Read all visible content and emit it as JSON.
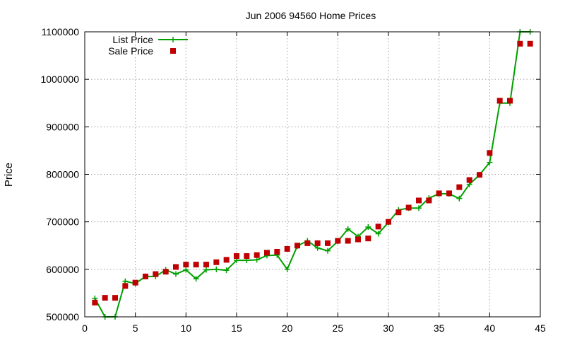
{
  "chart_data": {
    "type": "line",
    "title": "Jun 2006 94560 Home Prices",
    "xlabel": "",
    "ylabel": "Price",
    "xlim": [
      0,
      45
    ],
    "ylim": [
      500000,
      1100000
    ],
    "x_ticks": [
      0,
      5,
      10,
      15,
      20,
      25,
      30,
      35,
      40,
      45
    ],
    "y_ticks": [
      500000,
      600000,
      700000,
      800000,
      900000,
      1000000,
      1100000
    ],
    "grid": true,
    "legend_position": "top-left",
    "series": [
      {
        "name": "List Price",
        "style": "line-with-plus-markers",
        "color": "#00a000",
        "x": [
          1,
          2,
          3,
          4,
          5,
          6,
          7,
          8,
          9,
          10,
          11,
          12,
          13,
          14,
          15,
          16,
          17,
          18,
          19,
          20,
          21,
          22,
          23,
          24,
          25,
          26,
          27,
          28,
          29,
          30,
          31,
          32,
          33,
          34,
          35,
          36,
          37,
          38,
          39,
          40,
          41,
          42,
          43,
          44
        ],
        "values": [
          539000,
          500000,
          500000,
          575000,
          570000,
          585000,
          585000,
          599000,
          590000,
          599000,
          580000,
          599000,
          600000,
          598000,
          619000,
          619000,
          620000,
          629000,
          630000,
          600000,
          649000,
          660000,
          645000,
          639000,
          659000,
          685000,
          669000,
          689000,
          675000,
          699000,
          725000,
          729000,
          729000,
          750000,
          759000,
          759000,
          749000,
          779000,
          799000,
          825000,
          950000,
          950000,
          1100000,
          1100000
        ]
      },
      {
        "name": "Sale Price",
        "style": "square-markers",
        "color": "#c00000",
        "x": [
          1,
          2,
          3,
          4,
          5,
          6,
          7,
          8,
          9,
          10,
          11,
          12,
          13,
          14,
          15,
          16,
          17,
          18,
          19,
          20,
          21,
          22,
          23,
          24,
          25,
          26,
          27,
          28,
          29,
          30,
          31,
          32,
          33,
          34,
          35,
          36,
          37,
          38,
          39,
          40,
          41,
          42,
          43,
          44
        ],
        "values": [
          530000,
          540000,
          540000,
          565000,
          572000,
          585000,
          590000,
          595000,
          605000,
          610000,
          610000,
          610000,
          615000,
          620000,
          628000,
          628000,
          630000,
          635000,
          637000,
          643000,
          650000,
          655000,
          655000,
          655000,
          660000,
          660000,
          663000,
          665000,
          690000,
          700000,
          720000,
          730000,
          745000,
          745000,
          760000,
          760000,
          773000,
          788000,
          799000,
          845000,
          955000,
          955000,
          1075000,
          1075000
        ]
      }
    ]
  }
}
